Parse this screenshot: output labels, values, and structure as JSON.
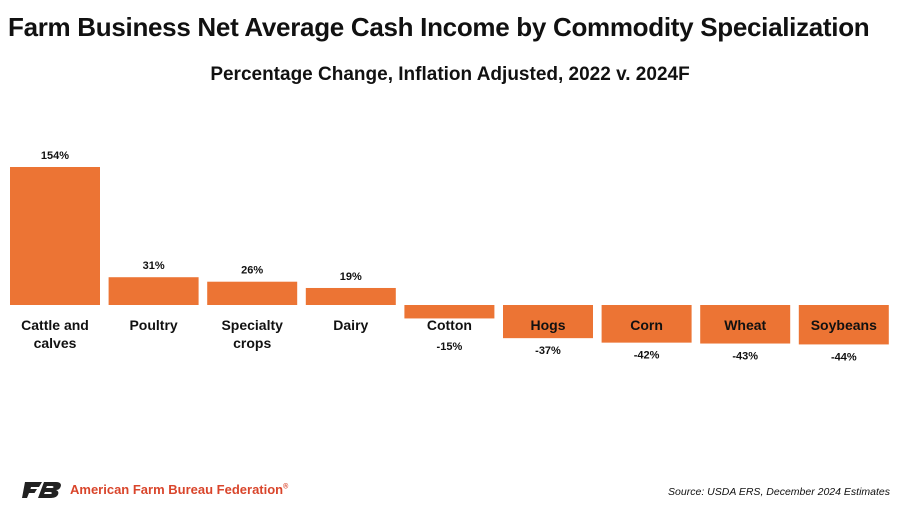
{
  "title": "Farm Business Net Average Cash Income by Commodity Specialization",
  "chart_data": {
    "type": "bar",
    "title": "Farm Business Net Average Cash Income by Commodity Specialization",
    "subtitle": "Percentage Change, Inflation Adjusted, 2022 v. 2024F",
    "categories": [
      "Cattle and\ncalves",
      "Poultry",
      "Specialty\ncrops",
      "Dairy",
      "Cotton",
      "Hogs",
      "Corn",
      "Wheat",
      "Soybeans"
    ],
    "values": [
      154,
      31,
      26,
      19,
      -15,
      -37,
      -42,
      -43,
      -44
    ],
    "data_labels": [
      "154%",
      "31%",
      "26%",
      "19%",
      "-15%",
      "-37%",
      "-42%",
      "-43%",
      "-44%"
    ],
    "unit": "%",
    "xlabel": "",
    "ylabel": "",
    "grid": false,
    "legend": "none",
    "bar_color": "#ec7434"
  },
  "footer": {
    "org_name": "American Farm Bureau Federation",
    "registered_mark": "®",
    "source": "Source: USDA ERS, December 2024 Estimates",
    "logo_icon": "afbf-logo-icon",
    "logo_color": "#222222"
  }
}
